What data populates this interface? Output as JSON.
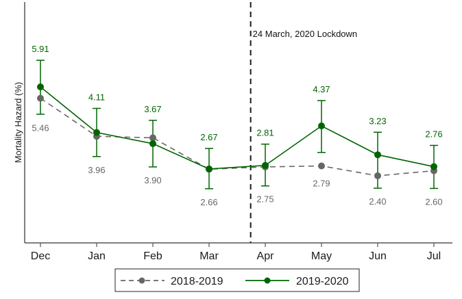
{
  "chart_data": {
    "type": "line",
    "title": "",
    "xlabel": "",
    "ylabel": "Mortality Hazard (%)",
    "categories": [
      "Dec",
      "Jan",
      "Feb",
      "Mar",
      "Apr",
      "May",
      "Jun",
      "Jul"
    ],
    "ylim": [
      -0.25,
      9.26
    ],
    "y_ticks_shown": false,
    "grid": false,
    "legend_position": "bottom",
    "series": [
      {
        "name": "2018-2019",
        "color": "#666666",
        "line_style": "dashed",
        "marker": "circle",
        "values": [
          5.46,
          3.96,
          3.9,
          2.66,
          2.75,
          2.79,
          2.4,
          2.6
        ],
        "labels": [
          "5.46",
          "3.96",
          "3.90",
          "2.66",
          "2.75",
          "2.79",
          "2.40",
          "2.60"
        ],
        "label_position": "below"
      },
      {
        "name": "2019-2020",
        "color": "#006400",
        "line_style": "solid",
        "marker": "circle",
        "values": [
          5.91,
          4.11,
          3.67,
          2.67,
          2.81,
          4.37,
          3.23,
          2.76
        ],
        "labels": [
          "5.91",
          "4.11",
          "3.67",
          "2.67",
          "2.81",
          "4.37",
          "3.23",
          "2.76"
        ],
        "label_position": "above",
        "ci_upper": [
          6.96,
          5.06,
          4.59,
          3.48,
          3.65,
          5.37,
          4.12,
          3.6
        ],
        "ci_lower": [
          4.83,
          3.16,
          2.75,
          1.89,
          2.0,
          3.32,
          1.91,
          1.9
        ]
      }
    ],
    "annotations": [
      {
        "type": "vline",
        "x_position_between": [
          "Mar",
          "Apr"
        ],
        "x_fraction": 0.74,
        "style": "dashed",
        "color": "#1a1a1a",
        "text": "24 March, 2020 Lockdown"
      }
    ]
  }
}
